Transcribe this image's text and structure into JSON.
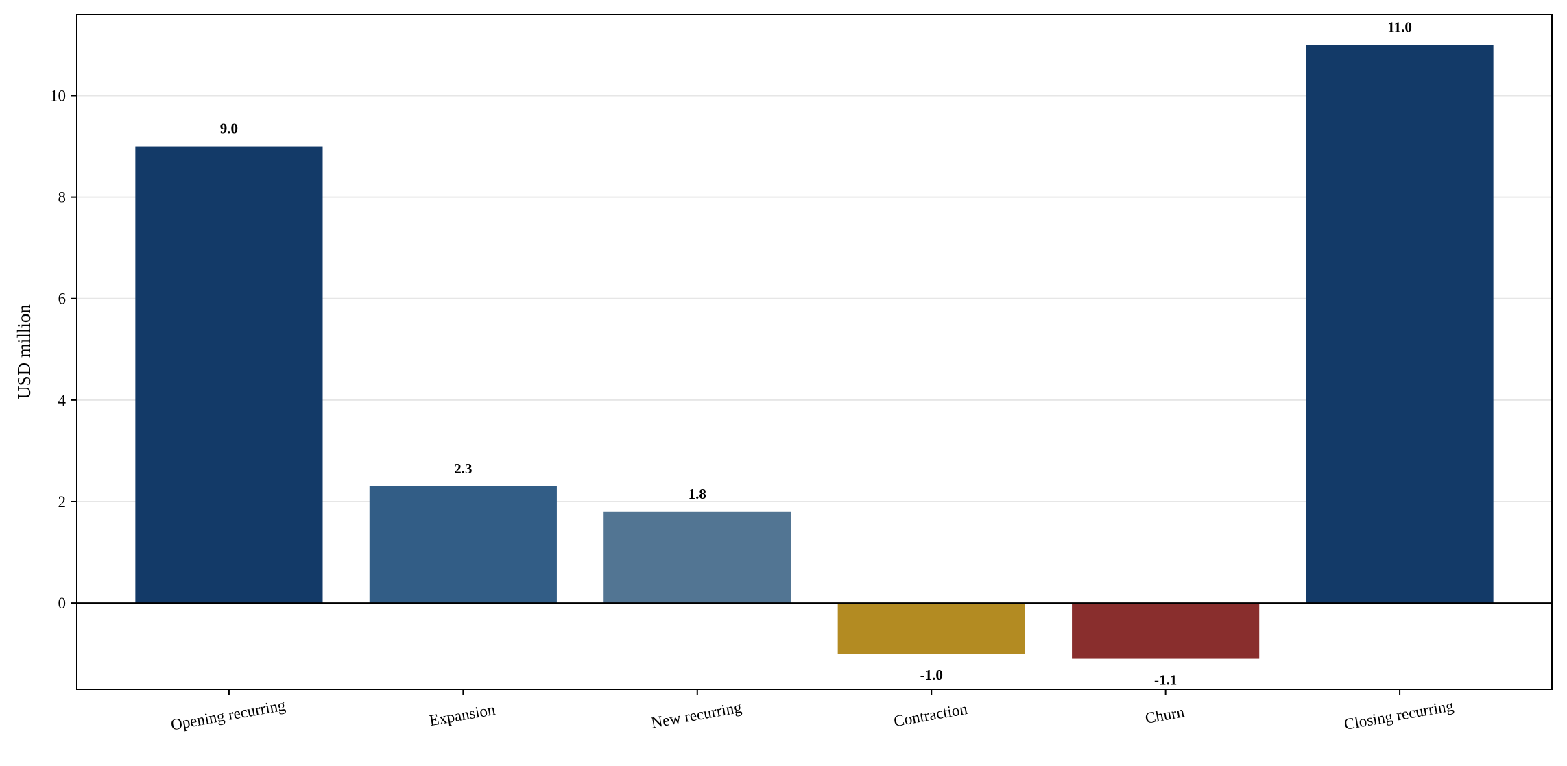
{
  "chart_data": {
    "type": "bar",
    "title": "",
    "xlabel": "",
    "ylabel": "USD million",
    "categories": [
      "Opening recurring",
      "Expansion",
      "New recurring",
      "Contraction",
      "Churn",
      "Closing recurring"
    ],
    "values": [
      9.0,
      2.3,
      1.8,
      -1.0,
      -1.1,
      11.0
    ],
    "value_labels": [
      "9.0",
      "2.3",
      "1.8",
      "-1.0",
      "-1.1",
      "11.0"
    ],
    "colors": [
      "#133a68",
      "#325d86",
      "#527593",
      "#b38b22",
      "#892e2d",
      "#133a68"
    ],
    "ylim": [
      -1.7,
      11.6
    ],
    "yticks": [
      0,
      2,
      4,
      6,
      8,
      10
    ],
    "ytick_labels": [
      "0",
      "2",
      "4",
      "6",
      "8",
      "10"
    ],
    "grid": "y",
    "grid_color": "#e6e6e6",
    "legend": "none"
  }
}
